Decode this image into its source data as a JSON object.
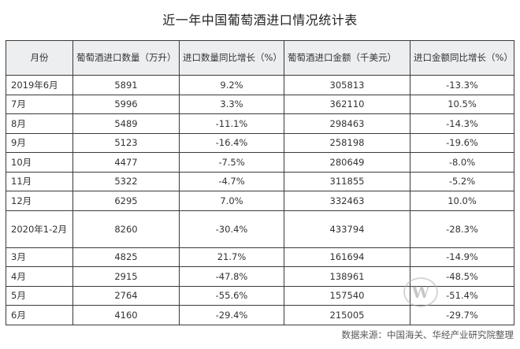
{
  "title": "近一年中国葡萄酒进口情况统计表",
  "table": {
    "headers": [
      "月份",
      "葡萄酒进口数量（万升）",
      "进口数量同比增长（%）",
      "葡萄酒进口金额（千美元）",
      "进口金额同比增长（%）"
    ],
    "rows": [
      [
        "2019年6月",
        "5891",
        "9.2%",
        "305813",
        "-13.3%"
      ],
      [
        "7月",
        "5996",
        "3.3%",
        "362110",
        "10.5%"
      ],
      [
        "8月",
        "5489",
        "-11.1%",
        "298463",
        "-14.3%"
      ],
      [
        "9月",
        "5123",
        "-16.4%",
        "258198",
        "-19.6%"
      ],
      [
        "10月",
        "4477",
        "-7.5%",
        "280649",
        "-8.0%"
      ],
      [
        "11月",
        "5322",
        "-4.7%",
        "311855",
        "-5.2%"
      ],
      [
        "12月",
        "6295",
        "7.0%",
        "332463",
        "10.0%"
      ],
      [
        "2020年1-2月",
        "8260",
        "-30.4%",
        "433794",
        "-28.3%"
      ],
      [
        "3月",
        "4825",
        "21.7%",
        "161694",
        "-14.9%"
      ],
      [
        "4月",
        "2915",
        "-47.8%",
        "138961",
        "-48.5%"
      ],
      [
        "5月",
        "2764",
        "-55.6%",
        "157540",
        "-51.4%"
      ],
      [
        "6月",
        "4160",
        "-29.4%",
        "215005",
        "-29.7%"
      ]
    ]
  },
  "source": "数据来源：中国海关、华经产业研究院整理",
  "watermark": "W"
}
